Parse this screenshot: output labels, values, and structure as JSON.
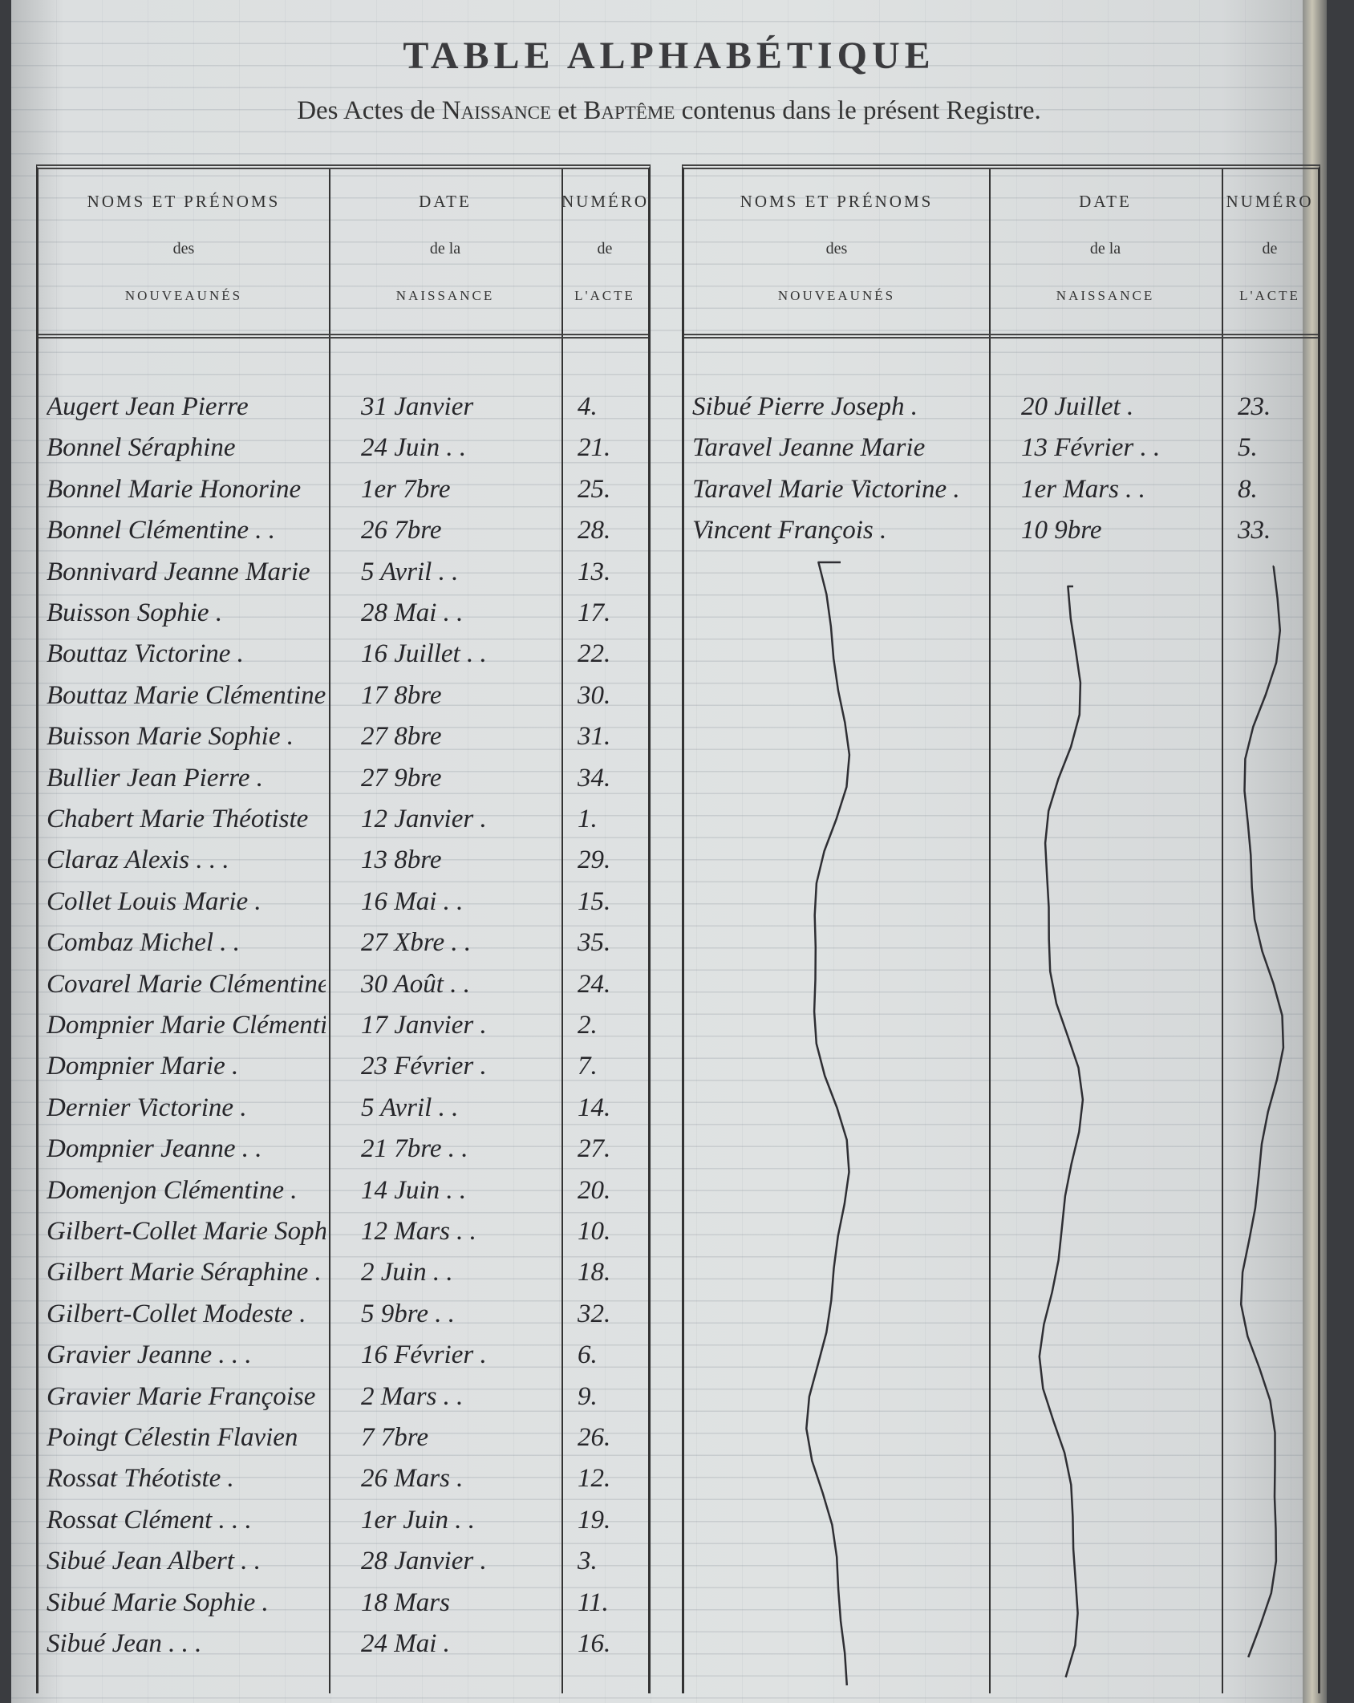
{
  "title": "TABLE ALPHABÉTIQUE",
  "subtitle": {
    "p1": "Des Actes de ",
    "p2": "Naissance",
    "p3": " et ",
    "p4": "Baptême",
    "p5": " contenus dans le présent Registre."
  },
  "headers": {
    "name": {
      "l1": "NOMS ET PRÉNOMS",
      "l2": "des",
      "l3": "NOUVEAUNÉS"
    },
    "date": {
      "l1": "DATE",
      "l2": "de la",
      "l3": "NAISSANCE"
    },
    "number": {
      "l1": "NUMÉRO",
      "l2": "de",
      "l3": "L'ACTE"
    }
  },
  "left_entries": [
    {
      "name": "Augert Jean Pierre",
      "date": "31 Janvier",
      "num": "4."
    },
    {
      "name": "Bonnel Séraphine",
      "date": "24 Juin . .",
      "num": "21."
    },
    {
      "name": "Bonnel Marie Honorine",
      "date": "1er 7bre",
      "num": "25."
    },
    {
      "name": "Bonnel Clémentine . .",
      "date": "26 7bre",
      "num": "28."
    },
    {
      "name": "Bonnivard Jeanne Marie",
      "date": "5 Avril . .",
      "num": "13."
    },
    {
      "name": "Buisson Sophie .",
      "date": "28 Mai . .",
      "num": "17."
    },
    {
      "name": "Bouttaz Victorine .",
      "date": "16 Juillet . .",
      "num": "22."
    },
    {
      "name": "Bouttaz Marie Clémentine",
      "date": "17 8bre",
      "num": "30."
    },
    {
      "name": "Buisson Marie Sophie .",
      "date": "27 8bre",
      "num": "31."
    },
    {
      "name": "Bullier Jean Pierre .",
      "date": "27 9bre",
      "num": "34."
    },
    {
      "name": "Chabert Marie Théotiste",
      "date": "12 Janvier .",
      "num": "1."
    },
    {
      "name": "Claraz Alexis . . .",
      "date": "13 8bre",
      "num": "29."
    },
    {
      "name": "Collet Louis Marie .",
      "date": "16 Mai . .",
      "num": "15."
    },
    {
      "name": "Combaz Michel . .",
      "date": "27 Xbre . .",
      "num": "35."
    },
    {
      "name": "Covarel Marie Clémentine",
      "date": "30 Août . .",
      "num": "24."
    },
    {
      "name": "Dompnier Marie Clémentine",
      "date": "17 Janvier .",
      "num": "2."
    },
    {
      "name": "Dompnier Marie .",
      "date": "23 Février .",
      "num": "7."
    },
    {
      "name": "Dernier Victorine .",
      "date": "5 Avril . .",
      "num": "14."
    },
    {
      "name": "Dompnier Jeanne . .",
      "date": "21 7bre . .",
      "num": "27."
    },
    {
      "name": "Domenjon Clémentine .",
      "date": "14 Juin . .",
      "num": "20."
    },
    {
      "name": "Gilbert-Collet Marie Sophie",
      "date": "12 Mars . .",
      "num": "10."
    },
    {
      "name": "Gilbert Marie Séraphine .",
      "date": "2 Juin . .",
      "num": "18."
    },
    {
      "name": "Gilbert-Collet Modeste .",
      "date": "5 9bre . .",
      "num": "32."
    },
    {
      "name": "Gravier Jeanne . . .",
      "date": "16 Février .",
      "num": "6."
    },
    {
      "name": "Gravier Marie Françoise",
      "date": "2 Mars . .",
      "num": "9."
    },
    {
      "name": "Poingt Célestin Flavien",
      "date": "7 7bre",
      "num": "26."
    },
    {
      "name": "Rossat Théotiste .",
      "date": "26 Mars .",
      "num": "12."
    },
    {
      "name": "Rossat Clément . . .",
      "date": "1er Juin . .",
      "num": "19."
    },
    {
      "name": "Sibué Jean Albert . .",
      "date": "28 Janvier .",
      "num": "3."
    },
    {
      "name": "Sibué Marie Sophie .",
      "date": "18 Mars",
      "num": "11."
    },
    {
      "name": "Sibué Jean . . .",
      "date": "24 Mai .",
      "num": "16."
    }
  ],
  "right_entries": [
    {
      "name": "Sibué Pierre Joseph .",
      "date": "20 Juillet .",
      "num": "23."
    },
    {
      "name": "Taravel Jeanne Marie",
      "date": "13 Février . .",
      "num": "5."
    },
    {
      "name": "Taravel Marie Victorine .",
      "date": "1er Mars . .",
      "num": "8."
    },
    {
      "name": "Vincent François .",
      "date": "10 9bre",
      "num": "33."
    }
  ]
}
